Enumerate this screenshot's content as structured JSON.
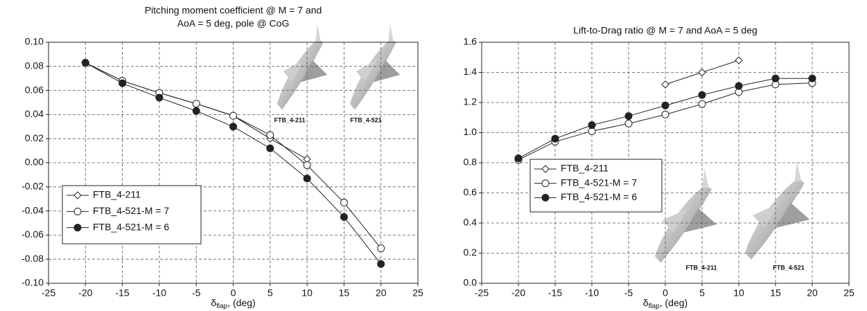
{
  "chart_data": [
    {
      "type": "line",
      "title": [
        "Pitching moment coefficient @ M = 7 and",
        "AoA = 5 deg, pole @ CoG"
      ],
      "x_label": "δ",
      "x_label_sub": "flap",
      "x_label_suffix": ", (deg)",
      "x": [
        -20,
        -15,
        -10,
        -5,
        0,
        5,
        10,
        15,
        20
      ],
      "xlim": [
        -25,
        25
      ],
      "xticks": [
        -25,
        -20,
        -15,
        -10,
        -5,
        0,
        5,
        10,
        15,
        20,
        25
      ],
      "ylim": [
        -0.1,
        0.1
      ],
      "yticks": [
        {
          "value": -0.1,
          "label": "-0.10"
        },
        {
          "value": -0.08,
          "label": "-0.08"
        },
        {
          "value": -0.06,
          "label": "-0.06"
        },
        {
          "value": -0.04,
          "label": "-0.04"
        },
        {
          "value": -0.02,
          "label": "-0.02"
        },
        {
          "value": 0,
          "label": "0.00"
        },
        {
          "value": 0.02,
          "label": "0.02"
        },
        {
          "value": 0.04,
          "label": "0.04"
        },
        {
          "value": 0.06,
          "label": "0.06"
        },
        {
          "value": 0.08,
          "label": "0.08"
        },
        {
          "value": 0.1,
          "label": "0.10"
        }
      ],
      "grid": true,
      "image_labels": [
        "FTB_4-211",
        "FTB_4-521"
      ],
      "series": [
        {
          "name": "FTB_4-211",
          "color": "#222222",
          "marker": "diamond",
          "values": [
            0.083,
            0.068,
            0.058,
            0.049,
            0.039,
            0.02,
            0.003,
            null,
            null
          ]
        },
        {
          "name": "FTB_4-521-M = 7",
          "color": "#222222",
          "marker": "circle-open",
          "values": [
            0.083,
            0.068,
            0.058,
            0.049,
            0.039,
            0.023,
            -0.002,
            -0.033,
            -0.071
          ]
        },
        {
          "name": "FTB_4-521-M = 6",
          "color": "#222222",
          "marker": "circle",
          "values": [
            0.083,
            0.066,
            0.054,
            0.043,
            0.03,
            0.012,
            -0.013,
            -0.045,
            -0.084
          ]
        }
      ]
    },
    {
      "type": "line",
      "title": "Lift-to-Drag ratio @ M = 7 and AoA = 5 deg",
      "x_label": "δ",
      "x_label_sub": "flap",
      "x_label_suffix": ", (deg)",
      "x": [
        -20,
        -15,
        -10,
        -5,
        0,
        5,
        10,
        15,
        20
      ],
      "xlim": [
        -25,
        25
      ],
      "xticks": [
        -25,
        -20,
        -15,
        -10,
        -5,
        0,
        5,
        10,
        15,
        20,
        25
      ],
      "ylim": [
        0,
        1.6
      ],
      "yticks": [
        {
          "value": 0,
          "label": "0.0"
        },
        {
          "value": 0.2,
          "label": "0.2"
        },
        {
          "value": 0.4,
          "label": "0.4"
        },
        {
          "value": 0.6,
          "label": "0.6"
        },
        {
          "value": 0.8,
          "label": "0.8"
        },
        {
          "value": 1,
          "label": "1.0"
        },
        {
          "value": 1.2,
          "label": "1.2"
        },
        {
          "value": 1.4,
          "label": "1.4"
        },
        {
          "value": 1.6,
          "label": "1.6"
        }
      ],
      "grid": true,
      "image_labels": [
        "FTB_4-211",
        "FTB_4-521"
      ],
      "series": [
        {
          "name": "FTB_4-211",
          "color": "#222222",
          "marker": "diamond",
          "values": [
            null,
            null,
            null,
            null,
            1.32,
            1.4,
            1.48,
            null,
            null
          ]
        },
        {
          "name": "FTB_4-521-M = 7",
          "color": "#222222",
          "marker": "circle-open",
          "values": [
            0.82,
            0.94,
            1.01,
            1.06,
            1.12,
            1.19,
            1.27,
            1.32,
            1.33
          ]
        },
        {
          "name": "FTB_4-521-M = 6",
          "color": "#222222",
          "marker": "circle",
          "values": [
            0.83,
            0.96,
            1.05,
            1.11,
            1.18,
            1.25,
            1.31,
            1.36,
            1.36
          ]
        }
      ]
    }
  ]
}
